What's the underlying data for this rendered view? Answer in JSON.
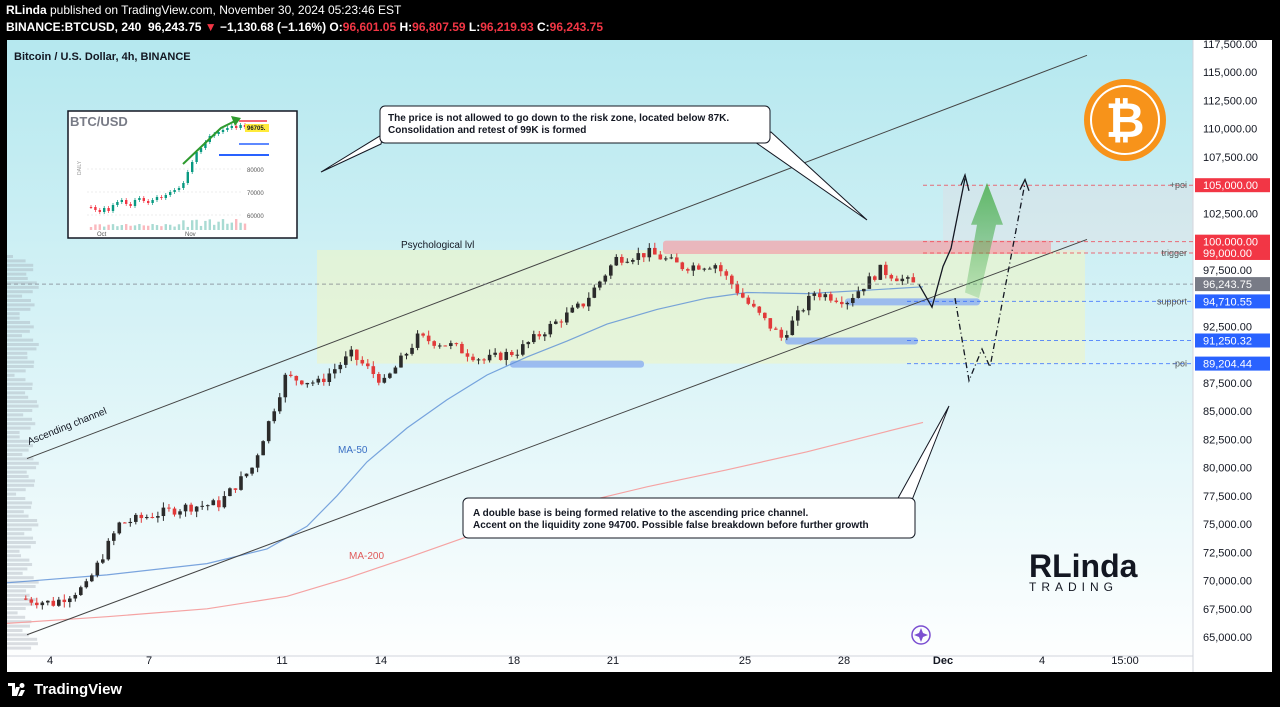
{
  "header": {
    "publisher": "RLinda",
    "published_text": " published on TradingView.com, November 30, 2024 05:23:46 EST",
    "symbol": "BINANCE:BTCUSD, 240",
    "last": "96,243.75",
    "change_arrow": "▼",
    "change": "−1,130.68 (−1.16%)",
    "ohlc": {
      "o_label": "O:",
      "o": "96,601.05",
      "h_label": "H:",
      "h": "96,807.59",
      "l_label": "L:",
      "l": "96,219.93",
      "c_label": "C:",
      "c": "96,243.75"
    }
  },
  "footer": {
    "brand": "TradingView"
  },
  "chart_data": {
    "type": "line",
    "title": "Bitcoin / U.S. Dollar, 4h, BINANCE",
    "xlabel": "",
    "ylabel": "",
    "ylim": [
      65000,
      117500
    ],
    "x_ticks": [
      "4",
      "7",
      "11",
      "14",
      "18",
      "21",
      "25",
      "28",
      "Dec",
      "4",
      "15:00"
    ],
    "y_ticks": [
      65000,
      67500,
      70000,
      72500,
      75000,
      77500,
      80000,
      82500,
      85000,
      87500,
      90000,
      92500,
      95000,
      97500,
      100000,
      102500,
      105000,
      107500,
      110000,
      112500,
      115000,
      117500
    ],
    "price_series": {
      "x": [
        "Nov 3",
        "Nov 4",
        "Nov 5",
        "Nov 6",
        "Nov 7",
        "Nov 8",
        "Nov 9",
        "Nov 10",
        "Nov 11",
        "Nov 12",
        "Nov 13",
        "Nov 14",
        "Nov 15",
        "Nov 16",
        "Nov 17",
        "Nov 18",
        "Nov 19",
        "Nov 20",
        "Nov 21",
        "Nov 22",
        "Nov 23",
        "Nov 24",
        "Nov 25",
        "Nov 26",
        "Nov 27",
        "Nov 28",
        "Nov 29",
        "Nov 30"
      ],
      "close": [
        68400,
        68000,
        69500,
        75000,
        75800,
        76500,
        76800,
        80000,
        88000,
        87500,
        90000,
        87500,
        91500,
        90800,
        89500,
        90300,
        92500,
        94500,
        98500,
        99000,
        97800,
        98000,
        94500,
        91500,
        95500,
        94800,
        97500,
        96243.75
      ]
    },
    "levels": [
      {
        "value": 105000,
        "label": "105,000.00",
        "tag": "+poi",
        "color": "#f23645"
      },
      {
        "value": 100000,
        "label": "100,000.00",
        "tag": "",
        "color": "#f23645"
      },
      {
        "value": 99000,
        "label": "99,000.00",
        "tag": "trigger",
        "color": "#f23645"
      },
      {
        "value": 96243.75,
        "label": "96,243.75",
        "tag": "",
        "color": "#787b86"
      },
      {
        "value": 94710.55,
        "label": "94,710.55",
        "tag": "support",
        "color": "#2962ff"
      },
      {
        "value": 91250.32,
        "label": "91,250.32",
        "tag": "",
        "color": "#2962ff"
      },
      {
        "value": 89204.44,
        "label": "89,204.44",
        "tag": "-poi",
        "color": "#2962ff"
      }
    ],
    "annotations": {
      "psych": "Psychological lvl",
      "channel": "Ascending channel",
      "ma50": "MA-50",
      "ma200": "MA-200",
      "callout_top_1": "The price is not allowed to go down to the risk zone, located below 87K.",
      "callout_top_2": "Consolidation and retest of 99K is formed",
      "callout_bottom_1": "A double base is being formed relative to the ascending price channel.",
      "callout_bottom_2": "Accent on the liquidity zone 94700. Possible false breakdown before further growth"
    },
    "inset": {
      "title": "BTC/USD",
      "price_tag": "96705.",
      "side_label": "DAILY",
      "y_ticks": [
        "80000",
        "70000",
        "60000"
      ],
      "x_ticks": [
        "Oct",
        "Nov"
      ]
    },
    "brand_logo": {
      "line1": "RLinda",
      "line2": "TRADING"
    },
    "colors": {
      "up": "#089981",
      "down": "#f23645",
      "ma50": "#5b8fd6",
      "ma200": "#f5a3a3",
      "bitcoin": "#f7931a"
    }
  }
}
